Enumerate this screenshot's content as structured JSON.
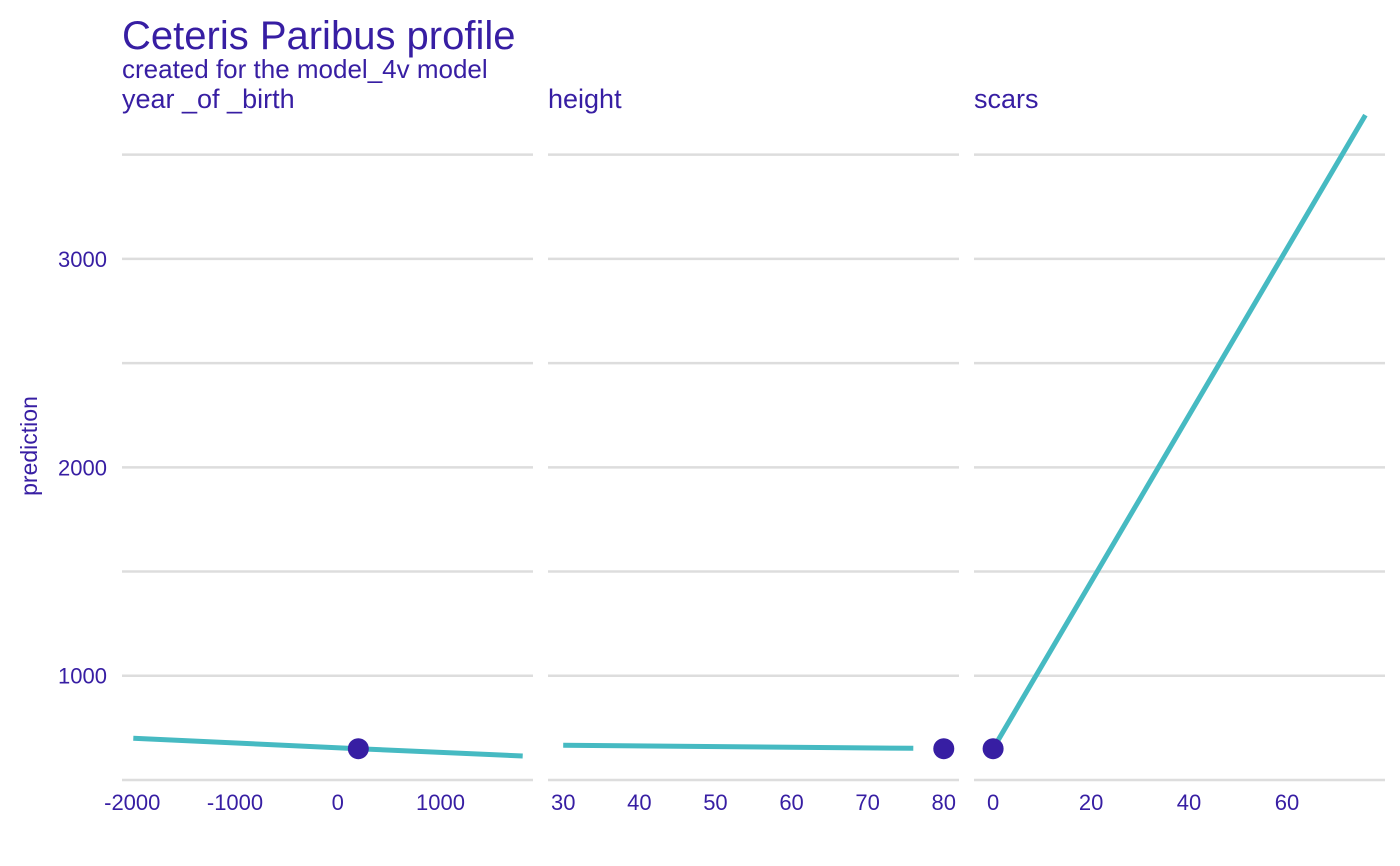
{
  "colors": {
    "text": "#371ea3",
    "line": "#46bac2",
    "point": "#371ea3",
    "grid": "#dddddd"
  },
  "chart_data": {
    "type": "line",
    "title": "Ceteris Paribus profile",
    "subtitle": "created for the model_4v model",
    "ylabel": "prediction",
    "ylim": [
      495,
      3700
    ],
    "y_ticks": [
      1000,
      2000,
      3000
    ],
    "grid": true,
    "panels": [
      {
        "name": "year_of_birth",
        "label": "year _of _birth",
        "xlim": [
          -2100,
          1900
        ],
        "x_ticks": [
          -2000,
          -1000,
          0,
          1000
        ],
        "x_tick_labels": [
          "-2000",
          "-1000",
          "0",
          "1000"
        ],
        "profile": {
          "x": [
            -1990,
            200,
            1800
          ],
          "y": [
            700,
            650,
            615
          ]
        },
        "observation": {
          "x": 200,
          "y": 650
        }
      },
      {
        "name": "height",
        "label": "height",
        "xlim": [
          28,
          82
        ],
        "x_ticks": [
          30,
          40,
          50,
          60,
          70,
          80
        ],
        "x_tick_labels": [
          "30",
          "40",
          "50",
          "60",
          "70",
          "80"
        ],
        "profile": {
          "x": [
            30,
            76
          ],
          "y": [
            667,
            652
          ]
        },
        "observation": {
          "x": 80,
          "y": 650
        }
      },
      {
        "name": "scars",
        "label": "scars",
        "xlim": [
          -3.9,
          80
        ],
        "x_ticks": [
          0,
          20,
          40,
          60
        ],
        "x_tick_labels": [
          "0",
          "20",
          "40",
          "60"
        ],
        "profile": {
          "x": [
            0,
            76
          ],
          "y": [
            650,
            3690
          ]
        },
        "observation": {
          "x": 0,
          "y": 650
        }
      }
    ]
  }
}
